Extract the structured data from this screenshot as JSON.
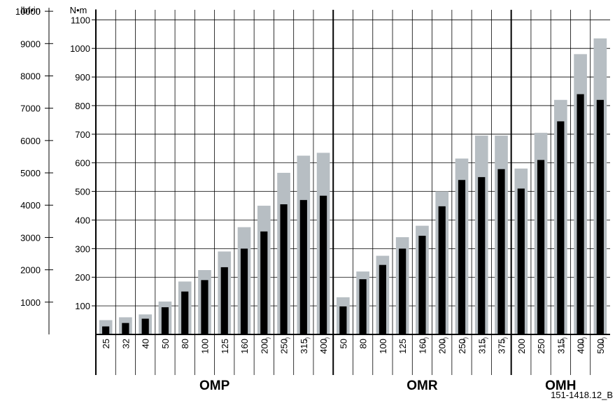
{
  "chart_data": {
    "type": "bar",
    "units": {
      "left": "lbf•in",
      "right": "N•m"
    },
    "y_nm_ticks": [
      100,
      200,
      300,
      400,
      500,
      600,
      700,
      800,
      900,
      1000,
      1100
    ],
    "y_lbf_ticks": [
      1000,
      2000,
      3000,
      4000,
      5000,
      6000,
      7000,
      8000,
      9000,
      10000
    ],
    "ylim_nm": [
      0,
      1135
    ],
    "grid": true,
    "series_names": [],
    "colors": {
      "peak": "#b7bec3",
      "continuous": "#000000",
      "grid": "#000000"
    },
    "groups": [
      {
        "name": "OMP",
        "categories": [
          "25",
          "32",
          "40",
          "50",
          "80",
          "100",
          "125",
          "160",
          "200",
          "250",
          "315",
          "400"
        ],
        "marks": [
          "",
          "",
          "",
          "",
          "",
          "",
          "",
          "",
          "*)",
          "*)",
          "*)",
          "*)"
        ],
        "peak": [
          50,
          60,
          70,
          115,
          185,
          225,
          290,
          375,
          450,
          565,
          625,
          635
        ],
        "continuous": [
          28,
          40,
          55,
          95,
          150,
          190,
          235,
          300,
          360,
          455,
          470,
          485
        ]
      },
      {
        "name": "OMR",
        "categories": [
          "50",
          "80",
          "100",
          "125",
          "160",
          "200",
          "250",
          "315",
          "375"
        ],
        "marks": [
          "",
          "",
          "",
          "",
          "**)",
          "**)",
          "**)",
          "**)",
          "**)"
        ],
        "peak": [
          130,
          220,
          275,
          340,
          380,
          500,
          615,
          695,
          695
        ],
        "continuous": [
          98,
          193,
          243,
          300,
          345,
          448,
          540,
          550,
          578
        ]
      },
      {
        "name": "OMH",
        "categories": [
          "200",
          "250",
          "315",
          "400",
          "500"
        ],
        "marks": [
          "",
          "",
          "***)",
          "***)",
          "***)"
        ],
        "peak": [
          580,
          705,
          820,
          980,
          1035
        ],
        "continuous": [
          510,
          610,
          745,
          840,
          820
        ]
      }
    ],
    "reference": "151-1418.12_B"
  }
}
